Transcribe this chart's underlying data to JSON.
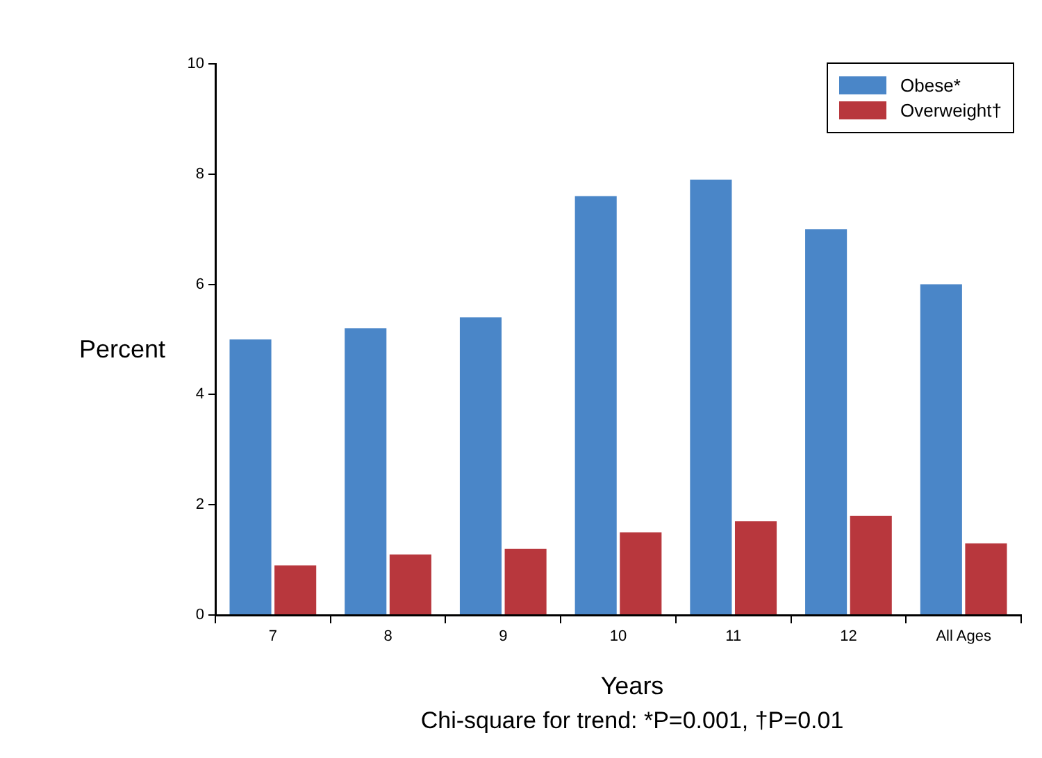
{
  "chart_data": {
    "type": "bar",
    "categories": [
      "7",
      "8",
      "9",
      "10",
      "11",
      "12",
      "All Ages"
    ],
    "series": [
      {
        "name": "Obese*",
        "color": "#4a86c8",
        "values": [
          5.0,
          5.2,
          5.4,
          7.6,
          7.9,
          7.0,
          6.0
        ]
      },
      {
        "name": "Overweight†",
        "color": "#b8373d",
        "values": [
          0.9,
          1.1,
          1.2,
          1.5,
          1.7,
          1.8,
          1.3
        ]
      }
    ],
    "ylim": [
      0,
      10
    ],
    "yticks": [
      0,
      2,
      4,
      6,
      8,
      10
    ],
    "ylabel": "Percent",
    "xlabel": "Years",
    "annotations": [
      "Chi-square for trend: *P=0.001, †P=0.01"
    ],
    "legend": "top right",
    "grid": false
  }
}
